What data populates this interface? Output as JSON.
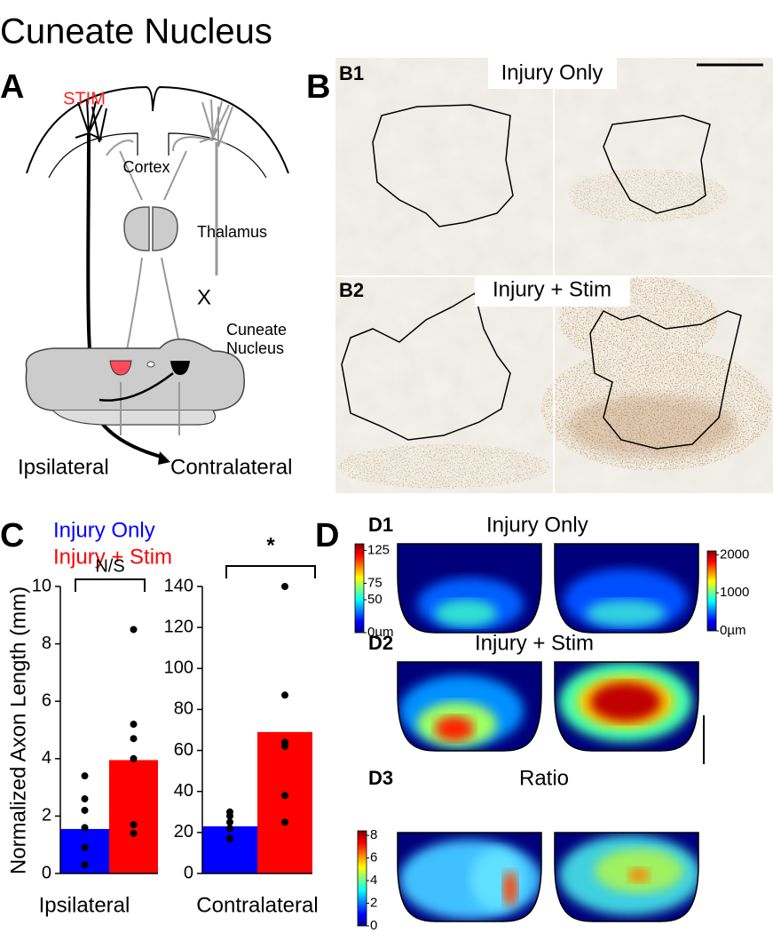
{
  "title": "Cuneate Nucleus",
  "panel_a": {
    "label": "A",
    "stim": "STIM",
    "cortex": "Cortex",
    "thalamus": "Thalamus",
    "lesion": "X",
    "nucleus": [
      "Cuneate",
      "Nucleus"
    ],
    "ipsilateral": "Ipsilateral",
    "contralateral": "Contralateral"
  },
  "panel_b": {
    "label": "B",
    "b1": {
      "label": "B1",
      "title": "Injury Only"
    },
    "b2": {
      "label": "B2",
      "title": "Injury + Stim"
    }
  },
  "panel_c": {
    "label": "C",
    "legend": [
      {
        "name": "Injury Only",
        "color": "#0000ff"
      },
      {
        "name": "Injury + Stim",
        "color": "#ff0000"
      }
    ],
    "y_label": "Normalized Axon Length (mm)"
  },
  "chart_data": [
    {
      "type": "bar",
      "x_label": "Ipsilateral",
      "annotation": "N/S",
      "values": [
        1.55,
        3.95
      ],
      "points": [
        [
          3.4,
          2.6,
          2.2,
          1.6,
          0.9,
          0.3
        ],
        [
          8.5,
          5.2,
          4.7,
          4.0,
          1.7,
          1.4
        ]
      ],
      "ylim": [
        0,
        10
      ],
      "yticks": [
        0,
        2,
        4,
        6,
        8,
        10
      ]
    },
    {
      "type": "bar",
      "x_label": "Contralateral",
      "annotation": "*",
      "values": [
        23,
        69
      ],
      "points": [
        [
          30,
          28,
          25,
          22,
          17
        ],
        [
          140,
          87,
          64,
          62,
          38,
          25
        ]
      ],
      "ylim": [
        0,
        140
      ],
      "yticks": [
        0,
        20,
        40,
        60,
        80,
        100,
        120,
        140
      ]
    }
  ],
  "panel_d": {
    "label": "D",
    "d1": {
      "label": "D1",
      "title": "Injury Only",
      "colorbars": [
        {
          "lim": [
            0,
            135
          ],
          "ticks": [
            {
              "value": 0,
              "label": "0µm"
            },
            50,
            75,
            125
          ]
        },
        {
          "lim": [
            0,
            2100
          ],
          "ticks": [
            {
              "value": 0,
              "label": "0µm"
            },
            1000,
            2000
          ]
        }
      ]
    },
    "d2": {
      "label": "D2",
      "title": "Injury + Stim"
    },
    "d3": {
      "label": "D3",
      "title": "Ratio",
      "colorbars": [
        {
          "lim": [
            0,
            8.4
          ],
          "ticks": [
            0,
            2,
            4,
            6,
            8
          ]
        }
      ]
    }
  }
}
